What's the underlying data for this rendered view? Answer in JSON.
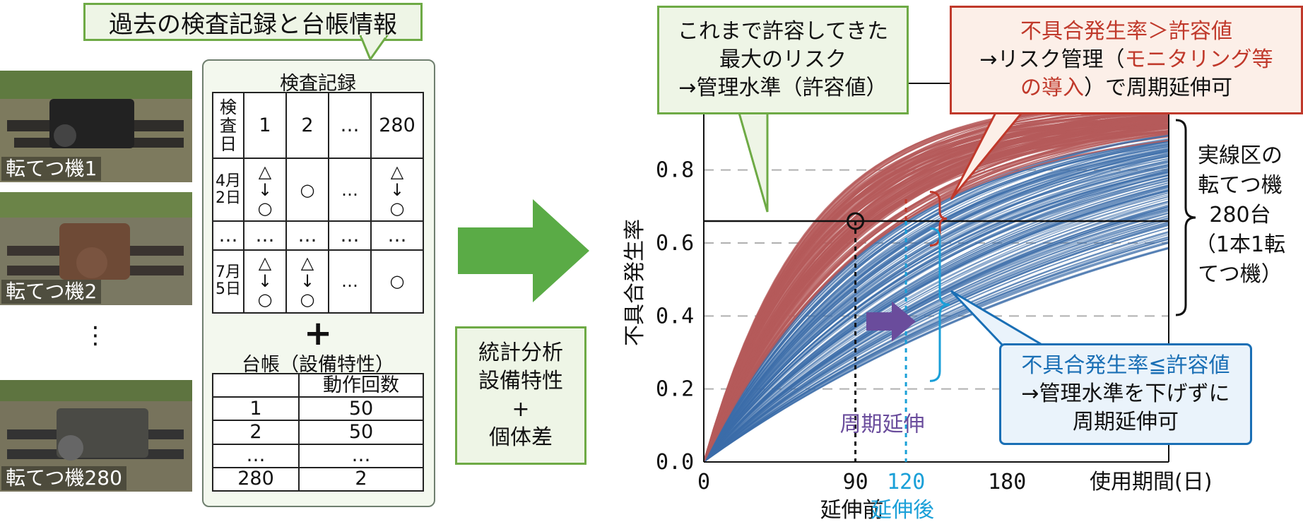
{
  "left": {
    "callout_title": "過去の検査記録と台帳情報",
    "photos": [
      {
        "label": "転てつ機1"
      },
      {
        "label": "転てつ機2"
      },
      {
        "label": "転てつ機280"
      }
    ],
    "ellipsis_vertical": "⋮",
    "inspection_caption": "検査記録",
    "inspection_table": {
      "header_label": "検\n査\n日",
      "columns": [
        "1",
        "2",
        "…",
        "280"
      ],
      "rows": [
        {
          "date": "4月\n2日",
          "cells": [
            "△\n↓\n○",
            "○",
            "…",
            "△\n↓\n○"
          ]
        },
        {
          "date": "…",
          "cells": [
            "…",
            "…",
            "…",
            "…"
          ]
        },
        {
          "date": "7月\n5日",
          "cells": [
            "△\n↓\n○",
            "△\n↓\n○",
            "…",
            "○"
          ]
        }
      ]
    },
    "plus": "+",
    "ledger_caption": "台帳（設備特性）",
    "ledger_table": {
      "header": [
        "",
        "動作回数"
      ],
      "rows": [
        [
          "1",
          "50"
        ],
        [
          "2",
          "50"
        ],
        [
          "…",
          "…"
        ],
        [
          "280",
          "2"
        ]
      ]
    }
  },
  "middle": {
    "stat_lines": [
      "統計分析",
      "設備特性",
      "+",
      "個体差"
    ],
    "arrow_color": "#5aab46"
  },
  "chart_data": {
    "type": "line",
    "ylabel": "不具合発生率",
    "xlabel": "使用期間(日)",
    "x_ticks": [
      "0",
      "90",
      "120",
      "180"
    ],
    "y_ticks": [
      "0.0",
      "0.2",
      "0.4",
      "0.6",
      "0.8"
    ],
    "xlim": [
      0,
      276
    ],
    "ylim": [
      0,
      0.96
    ],
    "grid": "dashed horizontal at 0.2, 0.4, 0.6, 0.8",
    "allowable_value": 0.66,
    "curve_count": 280,
    "before_extension_day": 90,
    "after_extension_day": 120,
    "below_axis_labels": {
      "before": "延伸前",
      "after": "延伸後"
    },
    "extension_label": "周期延伸",
    "colors": {
      "curves": "#3d6eaa",
      "over_limit": "#b55a5a",
      "before": "#111111",
      "after": "#1aa0d8",
      "extension": "#6a4c9c"
    }
  },
  "callouts": {
    "green": [
      "これまで許容してきた",
      "最大のリスク",
      "→管理水準（許容値）"
    ],
    "red_line1": "不具合発生率＞許容値",
    "red_line2_a": "→リスク管理（",
    "red_line2_b": "モニタリング等",
    "red_line3_a": "の導入",
    "red_line3_b": "）で周期延伸可",
    "blue_line1": "不具合発生率≦許容値",
    "blue_line2": "→管理水準を下げずに",
    "blue_line3": "周期延伸可",
    "right_brace": [
      "実線区の",
      "転てつ機",
      "280台",
      "（1本1転",
      "てつ機）"
    ]
  }
}
